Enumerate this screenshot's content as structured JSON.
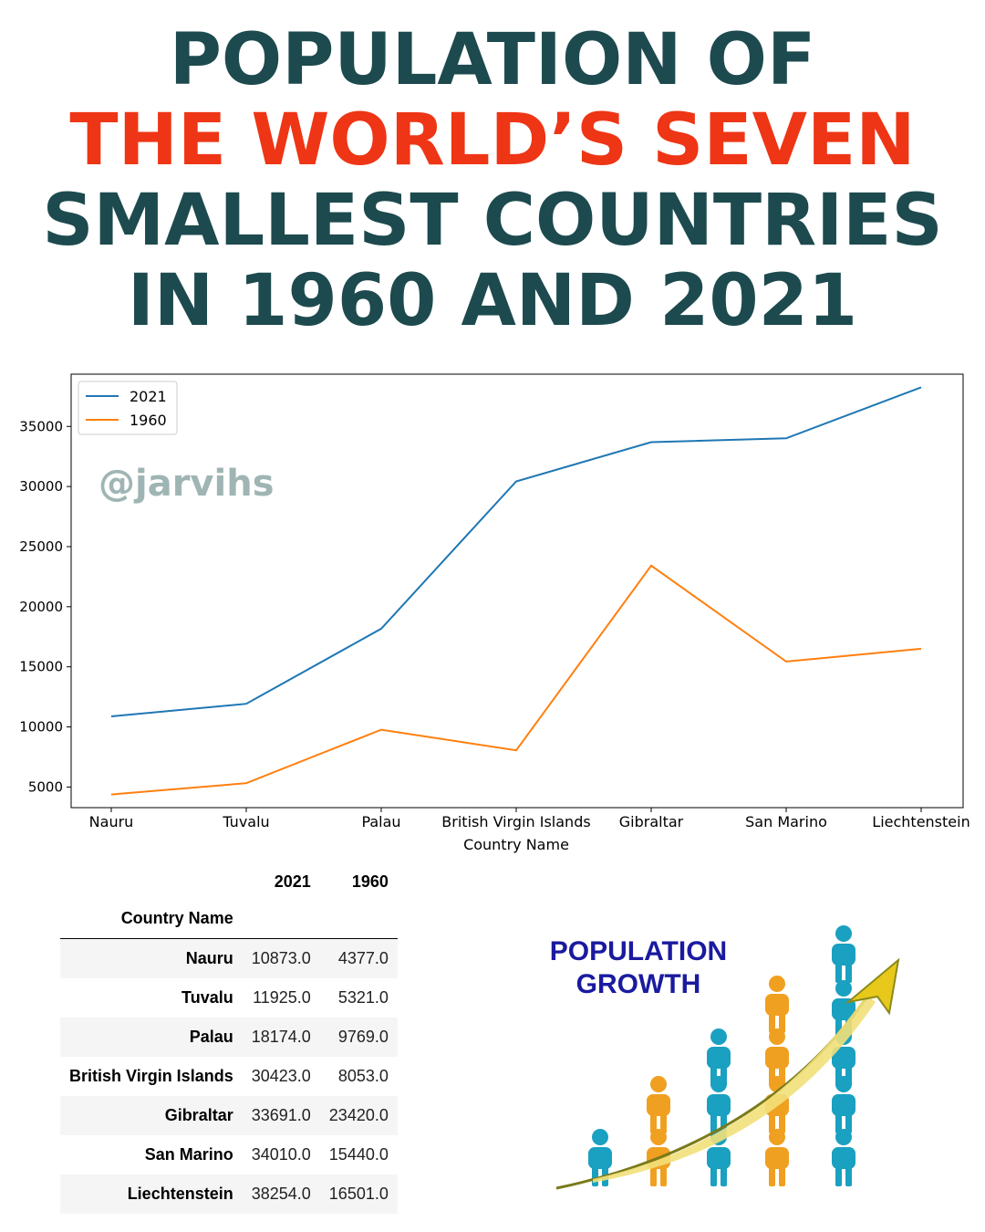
{
  "title": {
    "line1": "POPULATION OF",
    "line2": "THE WORLD’S SEVEN",
    "line3": "SMALLEST COUNTRIES",
    "line4": "IN 1960 AND 2021",
    "dark_color": "#1d4a4e",
    "accent_color": "#ee3515"
  },
  "watermark": "@jarvihs",
  "chart_data": {
    "type": "line",
    "categories": [
      "Nauru",
      "Tuvalu",
      "Palau",
      "British Virgin Islands",
      "Gibraltar",
      "San Marino",
      "Liechtenstein"
    ],
    "series": [
      {
        "name": "2021",
        "color": "#1f77b4",
        "values": [
          10873,
          11925,
          18174,
          30423,
          33691,
          34010,
          38254
        ]
      },
      {
        "name": "1960",
        "color": "#ff7f0e",
        "values": [
          4377,
          5321,
          9769,
          8053,
          23420,
          15440,
          16501
        ]
      }
    ],
    "xlabel": "Country Name",
    "ylabel": "",
    "yticks": [
      5000,
      10000,
      15000,
      20000,
      25000,
      30000,
      35000
    ],
    "ylim": [
      3283,
      39348
    ],
    "legend": "top-left",
    "grid": false
  },
  "table": {
    "index_name": "Country Name",
    "columns": [
      "2021",
      "1960"
    ],
    "rows": [
      {
        "country": "Nauru",
        "v2021": "10873.0",
        "v1960": "4377.0"
      },
      {
        "country": "Tuvalu",
        "v2021": "11925.0",
        "v1960": "5321.0"
      },
      {
        "country": "Palau",
        "v2021": "18174.0",
        "v1960": "9769.0"
      },
      {
        "country": "British Virgin Islands",
        "v2021": "30423.0",
        "v1960": "8053.0"
      },
      {
        "country": "Gibraltar",
        "v2021": "33691.0",
        "v1960": "23420.0"
      },
      {
        "country": "San Marino",
        "v2021": "34010.0",
        "v1960": "15440.0"
      },
      {
        "country": "Liechtenstein",
        "v2021": "38254.0",
        "v1960": "16501.0"
      }
    ]
  },
  "graphic": {
    "line1": "POPULATION",
    "line2": "GROWTH",
    "text_color": "#1a1aa0",
    "teal": "#1aa0c0",
    "orange": "#f0a020",
    "arrow": "#e8c81a"
  }
}
